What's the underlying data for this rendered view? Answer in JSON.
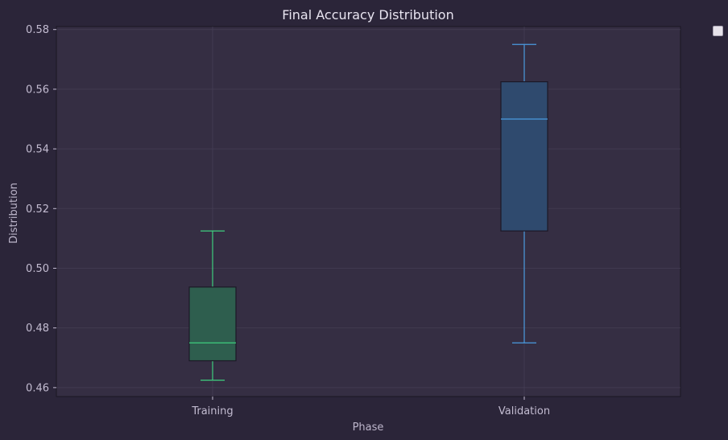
{
  "chart_data": {
    "type": "box",
    "title": "Final Accuracy Distribution",
    "xlabel": "Phase",
    "ylabel": "Distribution",
    "ylim": [
      0.457,
      0.581
    ],
    "yticks": [
      0.46,
      0.48,
      0.5,
      0.52,
      0.54,
      0.56,
      0.58
    ],
    "ytick_labels": [
      "0.46",
      "0.48",
      "0.50",
      "0.52",
      "0.54",
      "0.56",
      "0.58"
    ],
    "categories": [
      "Training",
      "Validation"
    ],
    "boxes": [
      {
        "category": "Training",
        "whisker_low": 0.4625,
        "q1": 0.469,
        "median": 0.475,
        "q3": 0.4937,
        "whisker_high": 0.5125,
        "color": "#3ecf7f",
        "fill": "#2e5e4e"
      },
      {
        "category": "Validation",
        "whisker_low": 0.475,
        "q1": 0.5125,
        "median": 0.55,
        "q3": 0.5625,
        "whisker_high": 0.575,
        "color": "#4a9be0",
        "fill": "#2f4a6e"
      }
    ],
    "grid": true,
    "legend": "top-right outside",
    "colors": {
      "background": "#2b2539",
      "plot_background": "#352e43",
      "grid": "#4a435a"
    }
  }
}
